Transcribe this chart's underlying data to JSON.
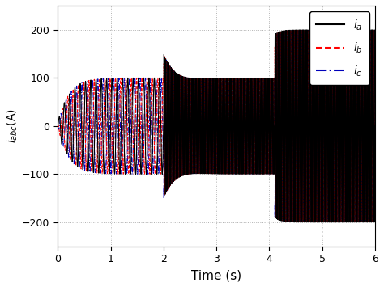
{
  "title": "",
  "xlabel": "Time (s)",
  "ylabel": "$i_{abc}$(A)",
  "xlim": [
    0,
    6
  ],
  "ylim": [
    -250,
    250
  ],
  "yticks": [
    -200,
    -100,
    0,
    100,
    200
  ],
  "xticks": [
    0,
    1,
    2,
    3,
    4,
    5,
    6
  ],
  "freq_low": 10,
  "freq_high": 50,
  "seg1_end": 2.0,
  "seg2_end": 4.1,
  "seg3_end": 6.0,
  "amp1": 100,
  "amp2": 100,
  "amp3": 200,
  "color_a": "#000000",
  "color_b": "#ff0000",
  "color_c": "#0000bb",
  "linestyle_a": "-",
  "linestyle_b": "--",
  "linestyle_c": "-.",
  "legend_labels": [
    "$i_a$",
    "$i_b$",
    "$i_c$"
  ],
  "grid_color": "#b0b0b0",
  "background_color": "#ffffff",
  "linewidth_low": 0.8,
  "linewidth_high": 0.5
}
